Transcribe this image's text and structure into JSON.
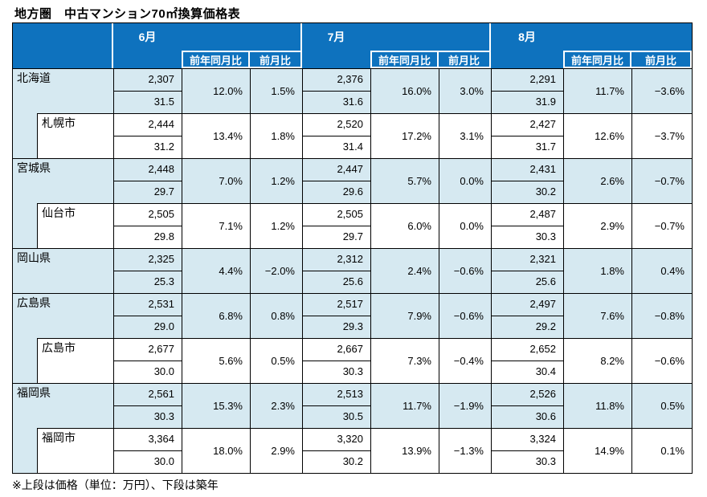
{
  "title": "地方圏　中古マンション70㎡換算価格表",
  "footnote": "※上段は価格（単位：万円）、下段は築年",
  "colors": {
    "header_bg": "#0E72BE",
    "pref_bg": "#D6E9F1",
    "city_bg": "#FFFFFF",
    "border": "#000000",
    "header_text": "#FFFFFF"
  },
  "header": {
    "months": [
      "6月",
      "7月",
      "8月"
    ],
    "yoy_label": "前年同月比",
    "mom_label": "前月比"
  },
  "rows": [
    {
      "name": "北海道",
      "level": "pref",
      "months": [
        {
          "price": "2,307",
          "age": "31.5",
          "yoy": "12.0%",
          "mom": "1.5%"
        },
        {
          "price": "2,376",
          "age": "31.6",
          "yoy": "16.0%",
          "mom": "3.0%"
        },
        {
          "price": "2,291",
          "age": "31.9",
          "yoy": "11.7%",
          "mom": "−3.6%"
        }
      ]
    },
    {
      "name": "札幌市",
      "level": "city",
      "months": [
        {
          "price": "2,444",
          "age": "31.2",
          "yoy": "13.4%",
          "mom": "1.8%"
        },
        {
          "price": "2,520",
          "age": "31.4",
          "yoy": "17.2%",
          "mom": "3.1%"
        },
        {
          "price": "2,427",
          "age": "31.7",
          "yoy": "12.6%",
          "mom": "−3.7%"
        }
      ]
    },
    {
      "name": "宮城県",
      "level": "pref",
      "months": [
        {
          "price": "2,448",
          "age": "29.7",
          "yoy": "7.0%",
          "mom": "1.2%"
        },
        {
          "price": "2,447",
          "age": "29.6",
          "yoy": "5.7%",
          "mom": "0.0%"
        },
        {
          "price": "2,431",
          "age": "30.2",
          "yoy": "2.6%",
          "mom": "−0.7%"
        }
      ]
    },
    {
      "name": "仙台市",
      "level": "city",
      "months": [
        {
          "price": "2,505",
          "age": "29.8",
          "yoy": "7.1%",
          "mom": "1.2%"
        },
        {
          "price": "2,505",
          "age": "29.7",
          "yoy": "6.0%",
          "mom": "0.0%"
        },
        {
          "price": "2,487",
          "age": "30.3",
          "yoy": "2.9%",
          "mom": "−0.7%"
        }
      ]
    },
    {
      "name": "岡山県",
      "level": "pref",
      "months": [
        {
          "price": "2,325",
          "age": "25.3",
          "yoy": "4.4%",
          "mom": "−2.0%"
        },
        {
          "price": "2,312",
          "age": "25.6",
          "yoy": "2.4%",
          "mom": "−0.6%"
        },
        {
          "price": "2,321",
          "age": "25.6",
          "yoy": "1.8%",
          "mom": "0.4%"
        }
      ]
    },
    {
      "name": "広島県",
      "level": "pref",
      "months": [
        {
          "price": "2,531",
          "age": "29.0",
          "yoy": "6.8%",
          "mom": "0.8%"
        },
        {
          "price": "2,517",
          "age": "29.3",
          "yoy": "7.9%",
          "mom": "−0.6%"
        },
        {
          "price": "2,497",
          "age": "29.2",
          "yoy": "7.6%",
          "mom": "−0.8%"
        }
      ]
    },
    {
      "name": "広島市",
      "level": "city",
      "months": [
        {
          "price": "2,677",
          "age": "30.0",
          "yoy": "5.6%",
          "mom": "0.5%"
        },
        {
          "price": "2,667",
          "age": "30.3",
          "yoy": "7.3%",
          "mom": "−0.4%"
        },
        {
          "price": "2,652",
          "age": "30.4",
          "yoy": "8.2%",
          "mom": "−0.6%"
        }
      ]
    },
    {
      "name": "福岡県",
      "level": "pref",
      "months": [
        {
          "price": "2,561",
          "age": "30.3",
          "yoy": "15.3%",
          "mom": "2.3%"
        },
        {
          "price": "2,513",
          "age": "30.5",
          "yoy": "11.7%",
          "mom": "−1.9%"
        },
        {
          "price": "2,526",
          "age": "30.6",
          "yoy": "11.8%",
          "mom": "0.5%"
        }
      ]
    },
    {
      "name": "福岡市",
      "level": "city",
      "months": [
        {
          "price": "3,364",
          "age": "30.0",
          "yoy": "18.0%",
          "mom": "2.9%"
        },
        {
          "price": "3,320",
          "age": "30.2",
          "yoy": "13.9%",
          "mom": "−1.3%"
        },
        {
          "price": "3,324",
          "age": "30.3",
          "yoy": "14.9%",
          "mom": "0.1%"
        }
      ]
    }
  ]
}
